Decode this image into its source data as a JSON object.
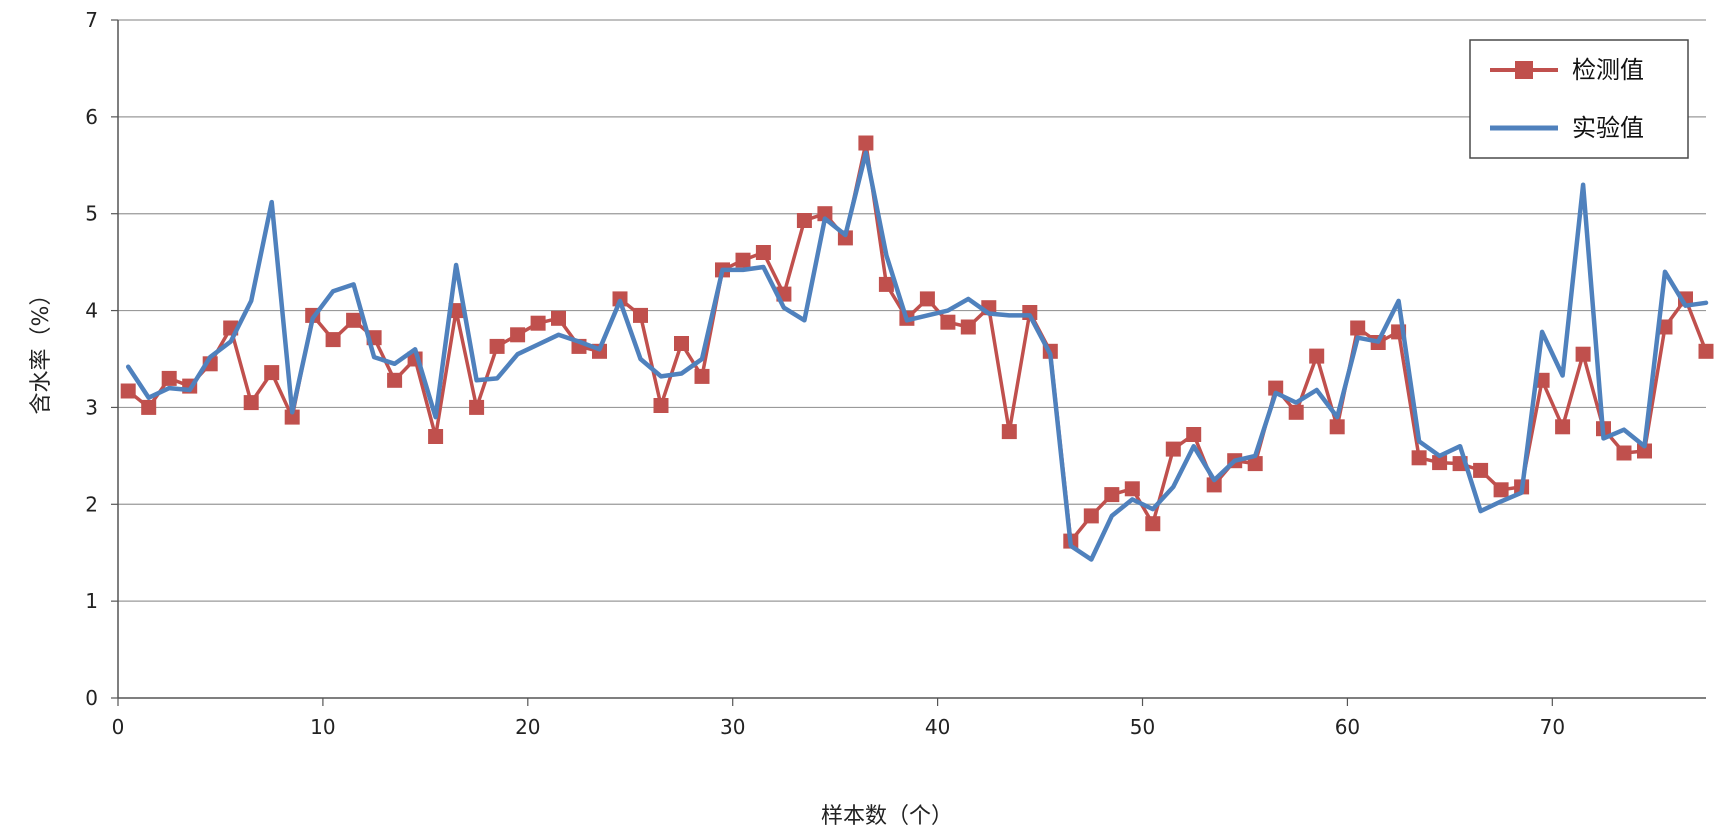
{
  "chart_data": {
    "type": "line",
    "xlabel": "样本数（个）",
    "ylabel": "含水率（%）",
    "xlim": [
      0,
      77.5
    ],
    "ylim": [
      0,
      7
    ],
    "x_ticks": [
      0,
      10,
      20,
      30,
      40,
      50,
      60,
      70
    ],
    "y_ticks": [
      0,
      1,
      2,
      3,
      4,
      5,
      6,
      7
    ],
    "grid": "horizontal",
    "legend_position": "top-right",
    "series": [
      {
        "name": "检测值",
        "color": "#c0504d",
        "marker": "square",
        "x": [
          0.5,
          1.5,
          2.5,
          3.5,
          4.5,
          5.5,
          6.5,
          7.5,
          8.5,
          9.5,
          10.5,
          11.5,
          12.5,
          13.5,
          14.5,
          15.5,
          16.5,
          17.5,
          18.5,
          19.5,
          20.5,
          21.5,
          22.5,
          23.5,
          24.5,
          25.5,
          26.5,
          27.5,
          28.5,
          29.5,
          30.5,
          31.5,
          32.5,
          33.5,
          34.5,
          35.5,
          36.5,
          37.5,
          38.5,
          39.5,
          40.5,
          41.5,
          42.5,
          43.5,
          44.5,
          45.5,
          46.5,
          47.5,
          48.5,
          49.5,
          50.5,
          51.5,
          52.5,
          53.5,
          54.5,
          55.5,
          56.5,
          57.5,
          58.5,
          59.5,
          60.5,
          61.5,
          62.5,
          63.5,
          64.5,
          65.5,
          66.5,
          67.5,
          68.5,
          69.5,
          70.5,
          71.5,
          72.5,
          73.5,
          74.5,
          75.5,
          76.5,
          77.5
        ],
        "values": [
          3.17,
          3.0,
          3.3,
          3.22,
          3.45,
          3.82,
          3.05,
          3.36,
          2.9,
          3.95,
          3.7,
          3.9,
          3.72,
          3.28,
          3.5,
          2.7,
          4.0,
          3.0,
          3.63,
          3.75,
          3.87,
          3.92,
          3.63,
          3.58,
          4.12,
          3.95,
          3.02,
          3.66,
          3.32,
          4.42,
          4.52,
          4.6,
          4.17,
          4.93,
          5.0,
          4.75,
          5.73,
          4.27,
          3.92,
          4.12,
          3.88,
          3.83,
          4.03,
          2.75,
          3.98,
          3.58,
          1.62,
          1.88,
          2.1,
          2.16,
          1.8,
          2.57,
          2.72,
          2.2,
          2.45,
          2.42,
          3.2,
          2.95,
          3.53,
          2.8,
          3.82,
          3.67,
          3.78,
          2.48,
          2.43,
          2.42,
          2.35,
          2.15,
          2.18,
          3.28,
          2.8,
          3.55,
          2.78,
          2.53,
          2.55,
          3.83,
          4.12,
          3.58
        ]
      },
      {
        "name": "实验值",
        "color": "#4f81bd",
        "marker": "none",
        "x": [
          0.5,
          1.5,
          2.5,
          3.5,
          4.5,
          5.5,
          6.5,
          7.5,
          8.5,
          9.5,
          10.5,
          11.5,
          12.5,
          13.5,
          14.5,
          15.5,
          16.5,
          17.5,
          18.5,
          19.5,
          20.5,
          21.5,
          22.5,
          23.5,
          24.5,
          25.5,
          26.5,
          27.5,
          28.5,
          29.5,
          30.5,
          31.5,
          32.5,
          33.5,
          34.5,
          35.5,
          36.5,
          37.5,
          38.5,
          39.5,
          40.5,
          41.5,
          42.5,
          43.5,
          44.5,
          45.5,
          46.5,
          47.5,
          48.5,
          49.5,
          50.5,
          51.5,
          52.5,
          53.5,
          54.5,
          55.5,
          56.5,
          57.5,
          58.5,
          59.5,
          60.5,
          61.5,
          62.5,
          63.5,
          64.5,
          65.5,
          66.5,
          67.5,
          68.5,
          69.5,
          70.5,
          71.5,
          72.5,
          73.5,
          74.5,
          75.5,
          76.5,
          77.5
        ],
        "values": [
          3.42,
          3.1,
          3.2,
          3.18,
          3.52,
          3.68,
          4.1,
          5.12,
          2.95,
          3.92,
          4.2,
          4.27,
          3.52,
          3.45,
          3.6,
          2.9,
          4.47,
          3.28,
          3.3,
          3.55,
          3.65,
          3.75,
          3.68,
          3.6,
          4.1,
          3.5,
          3.32,
          3.35,
          3.5,
          4.42,
          4.42,
          4.45,
          4.03,
          3.9,
          4.95,
          4.78,
          5.63,
          4.57,
          3.9,
          3.95,
          4.0,
          4.12,
          3.97,
          3.95,
          3.95,
          3.55,
          1.57,
          1.43,
          1.88,
          2.05,
          1.95,
          2.18,
          2.6,
          2.25,
          2.45,
          2.5,
          3.15,
          3.05,
          3.18,
          2.9,
          3.72,
          3.68,
          4.1,
          2.65,
          2.5,
          2.6,
          1.93,
          2.03,
          2.12,
          3.78,
          3.33,
          5.3,
          2.68,
          2.77,
          2.6,
          4.4,
          4.05,
          4.08
        ]
      }
    ]
  }
}
